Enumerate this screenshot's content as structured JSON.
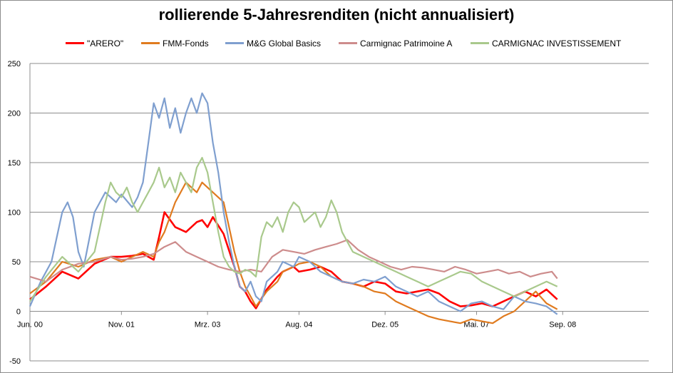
{
  "chart_data": {
    "type": "line",
    "title": "rollierende 5-Jahresrenditen (nicht annualisiert)",
    "xlabel": "",
    "ylabel": "",
    "ylim": [
      -50,
      250
    ],
    "yticks": [
      -50,
      0,
      50,
      100,
      150,
      200,
      250
    ],
    "xtick_labels": [
      "Jun. 00",
      "Nov. 01",
      "Mrz. 03",
      "Aug. 04",
      "Dez. 05",
      "Mai. 07",
      "Sep. 08"
    ],
    "xtick_values": [
      0,
      17,
      33,
      50,
      66,
      83,
      99
    ],
    "xlim": [
      0,
      115
    ],
    "grid": true,
    "legend": "top",
    "series": [
      {
        "name": "\"ARERO\"",
        "color": "#ff0000",
        "x": [
          0,
          3,
          6,
          9,
          12,
          15,
          17,
          19,
          21,
          23,
          24,
          25,
          27,
          29,
          31,
          32,
          33,
          34,
          36,
          38,
          39,
          40,
          41,
          42,
          44,
          46,
          47,
          49,
          50,
          52,
          54,
          56,
          58,
          60,
          62,
          64,
          66,
          68,
          70,
          72,
          74,
          76,
          78,
          80,
          82,
          84,
          86,
          88,
          90,
          92,
          94,
          96,
          98
        ],
        "y": [
          12,
          25,
          40,
          33,
          48,
          55,
          55,
          56,
          58,
          52,
          75,
          100,
          85,
          80,
          90,
          92,
          85,
          95,
          78,
          45,
          25,
          20,
          10,
          3,
          22,
          35,
          40,
          45,
          40,
          42,
          45,
          40,
          30,
          28,
          25,
          30,
          28,
          20,
          18,
          20,
          22,
          18,
          10,
          5,
          6,
          8,
          5,
          10,
          15,
          20,
          15,
          22,
          12
        ]
      },
      {
        "name": "FMM-Fonds",
        "color": "#e07b1f",
        "x": [
          0,
          3,
          6,
          9,
          12,
          15,
          17,
          19,
          21,
          23,
          24,
          25,
          27,
          29,
          31,
          32,
          33,
          34,
          36,
          37,
          38,
          39,
          40,
          41,
          42,
          44,
          46,
          47,
          49,
          50,
          52,
          54,
          56,
          58,
          60,
          62,
          64,
          66,
          68,
          70,
          72,
          74,
          76,
          78,
          80,
          82,
          84,
          86,
          88,
          90,
          92,
          94,
          96,
          98
        ],
        "y": [
          18,
          30,
          50,
          45,
          52,
          55,
          50,
          55,
          60,
          55,
          70,
          80,
          110,
          130,
          120,
          130,
          125,
          120,
          110,
          85,
          60,
          40,
          25,
          15,
          5,
          20,
          30,
          40,
          45,
          48,
          50,
          45,
          35,
          30,
          28,
          25,
          20,
          18,
          10,
          5,
          0,
          -5,
          -8,
          -10,
          -12,
          -8,
          -10,
          -12,
          -5,
          0,
          10,
          20,
          8,
          2
        ]
      },
      {
        "name": "M&G Global Basics",
        "color": "#7f9fcf",
        "x": [
          0,
          2,
          4,
          6,
          7,
          8,
          9,
          10,
          12,
          14,
          15,
          16,
          17,
          19,
          20,
          21,
          22,
          23,
          24,
          25,
          26,
          27,
          28,
          29,
          30,
          31,
          32,
          33,
          34,
          35,
          36,
          37,
          38,
          39,
          40,
          41,
          42,
          43,
          44,
          46,
          47,
          49,
          50,
          52,
          54,
          56,
          58,
          60,
          62,
          64,
          66,
          68,
          70,
          72,
          74,
          76,
          78,
          80,
          82,
          84,
          86,
          88,
          90,
          92,
          94,
          96,
          98
        ],
        "y": [
          5,
          30,
          50,
          100,
          110,
          95,
          60,
          45,
          100,
          120,
          115,
          110,
          118,
          105,
          115,
          130,
          170,
          210,
          195,
          215,
          185,
          205,
          180,
          200,
          215,
          200,
          220,
          210,
          170,
          140,
          100,
          70,
          45,
          25,
          20,
          30,
          15,
          10,
          30,
          40,
          50,
          45,
          55,
          50,
          40,
          35,
          30,
          28,
          32,
          30,
          35,
          25,
          20,
          15,
          20,
          10,
          5,
          0,
          8,
          10,
          5,
          2,
          15,
          10,
          8,
          5,
          -3
        ]
      },
      {
        "name": "Carmignac Patrimoine A",
        "color": "#cd8c8c",
        "x": [
          0,
          3,
          6,
          9,
          12,
          15,
          17,
          19,
          21,
          23,
          25,
          27,
          29,
          31,
          33,
          35,
          37,
          39,
          41,
          43,
          45,
          47,
          49,
          51,
          53,
          55,
          57,
          59,
          61,
          63,
          65,
          67,
          69,
          71,
          73,
          75,
          77,
          79,
          81,
          83,
          85,
          87,
          89,
          91,
          93,
          95,
          97,
          98
        ],
        "y": [
          35,
          30,
          42,
          48,
          50,
          55,
          52,
          53,
          55,
          58,
          65,
          70,
          60,
          55,
          50,
          45,
          42,
          40,
          42,
          40,
          55,
          62,
          60,
          58,
          62,
          65,
          68,
          72,
          62,
          55,
          50,
          45,
          42,
          45,
          44,
          42,
          40,
          45,
          42,
          38,
          40,
          42,
          38,
          40,
          35,
          38,
          40,
          33
        ]
      },
      {
        "name": "CARMIGNAC INVESTISSEMENT",
        "color": "#a9c98c",
        "x": [
          0,
          3,
          6,
          9,
          12,
          14,
          15,
          16,
          17,
          18,
          19,
          20,
          21,
          22,
          23,
          24,
          25,
          26,
          27,
          28,
          29,
          30,
          31,
          32,
          33,
          34,
          35,
          36,
          37,
          38,
          39,
          40,
          41,
          42,
          43,
          44,
          45,
          46,
          47,
          48,
          49,
          50,
          51,
          52,
          53,
          54,
          55,
          56,
          57,
          58,
          59,
          60,
          62,
          64,
          66,
          68,
          70,
          72,
          74,
          76,
          78,
          80,
          82,
          84,
          86,
          88,
          90,
          92,
          94,
          96,
          98
        ],
        "y": [
          10,
          35,
          55,
          40,
          60,
          110,
          130,
          120,
          115,
          125,
          110,
          100,
          110,
          120,
          130,
          145,
          125,
          135,
          120,
          140,
          130,
          120,
          145,
          155,
          140,
          110,
          80,
          55,
          45,
          40,
          38,
          42,
          40,
          35,
          75,
          90,
          85,
          95,
          80,
          100,
          110,
          105,
          90,
          95,
          100,
          85,
          95,
          112,
          100,
          80,
          70,
          60,
          55,
          50,
          45,
          40,
          35,
          30,
          25,
          30,
          35,
          40,
          38,
          30,
          25,
          20,
          15,
          20,
          25,
          30,
          25
        ]
      }
    ]
  }
}
